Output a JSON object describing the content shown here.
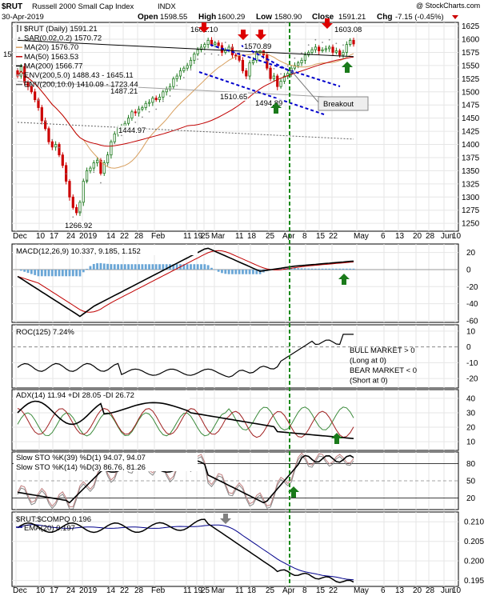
{
  "header": {
    "symbol": "$RUT",
    "name": "Russell 2000 Small Cap Index",
    "exchange": "INDX",
    "watermark": "@ StockCharts.com",
    "date": "30-Apr-2019",
    "open_label": "Open",
    "open": "1598.55",
    "high_label": "High",
    "high": "1600.29",
    "low_label": "Low",
    "low": "1580.90",
    "close_label": "Close",
    "close": "1591.21",
    "chg_label": "Chg",
    "chg": "-7.15 (-0.45%)"
  },
  "legend": [
    {
      "text": "$RUT (Daily) 1591.21",
      "color": "#000000",
      "swatch": "candle"
    },
    {
      "text": "SAR(0.02,0.2) 1570.72",
      "color": "#888888",
      "swatch": "dot"
    },
    {
      "text": "MA(20) 1576.70",
      "color": "#d8a060",
      "swatch": "line"
    },
    {
      "text": "MA(50) 1563.53",
      "color": "#c00000",
      "swatch": "line"
    },
    {
      "text": "MA(200) 1566.77",
      "color": "#000000",
      "swatch": "line"
    },
    {
      "text": "ENV(200,5.0) 1488.43 - 1645.11",
      "color": "#a0a0a0",
      "swatch": "line"
    },
    {
      "text": "ENV(200,10.0) 1410.09 - 1723.44",
      "color": "#606060",
      "swatch": "line"
    }
  ],
  "annotations": {
    "breakout": "Breakout",
    "price_labels": [
      "1602.10",
      "1570.89",
      "1603.08",
      "1487.21",
      "1510.65",
      "1494.89",
      "1444.97",
      "1266.92"
    ],
    "left_cut": "15"
  },
  "x_labels": [
    "Dec",
    "10",
    "17",
    "24",
    "2019",
    "14",
    "22",
    "28",
    "Feb",
    "11",
    "19",
    "25",
    "Mar",
    "11",
    "18",
    "25",
    "Apr",
    "8",
    "15",
    "22",
    "May",
    "6",
    "13",
    "20",
    "28",
    "Jun",
    "10"
  ],
  "colors": {
    "up": "#1e7a1e",
    "down": "#cc0000",
    "trend": "#0000cc",
    "arrow_red": "#dd0000",
    "arrow_green": "#1a7a1a",
    "arrow_gray": "#808080",
    "vline": "#1a8a1a"
  },
  "panels": {
    "macd": {
      "title": "MACD(12,26,9) 10.337, 9.185, 1.152",
      "yticks": [
        "20",
        "0",
        "-20",
        "-40",
        "-60"
      ]
    },
    "roc": {
      "title": "ROC(125) 7.24%",
      "yticks": [
        "10",
        "0",
        "-10",
        "-20"
      ],
      "notes": [
        "BULL MARKET > 0",
        "(Long at 0)",
        "BEAR MARKET < 0",
        "(Short at 0)"
      ]
    },
    "adx": {
      "title": "ADX(14) 11.94 +DI 28.05 -DI 26.72",
      "yticks": [
        "40",
        "30",
        "20",
        "10"
      ]
    },
    "sto": {
      "title1": "Slow STO %K(39) %D(1) 94.07, 94.07",
      "title2": "Slow STO %K(14) %D(3) 86.76, 81.26",
      "yticks": [
        "80",
        "50",
        "20"
      ]
    },
    "rel": {
      "title": "$RUT:$COMPQ 0.196",
      "ema": "EMA(20) 0.197",
      "yticks": [
        "0.210",
        "0.205",
        "0.200",
        "0.195"
      ]
    }
  },
  "chart_data": {
    "type": "candlestick",
    "title": "$RUT Russell 2000 Small Cap Index INDX",
    "y_ticks": [
      1250,
      1275,
      1300,
      1325,
      1350,
      1375,
      1400,
      1425,
      1450,
      1475,
      1500,
      1525,
      1550,
      1575,
      1600,
      1625
    ],
    "ylim": [
      1235,
      1632
    ],
    "closes": [
      1530,
      1548,
      1518,
      1510,
      1500,
      1485,
      1470,
      1445,
      1430,
      1405,
      1395,
      1400,
      1380,
      1360,
      1330,
      1300,
      1280,
      1270,
      1290,
      1330,
      1350,
      1355,
      1365,
      1370,
      1345,
      1365,
      1380,
      1405,
      1420,
      1430,
      1435,
      1440,
      1450,
      1462,
      1460,
      1467,
      1470,
      1478,
      1480,
      1488,
      1485,
      1490,
      1500,
      1505,
      1510,
      1525,
      1530,
      1540,
      1545,
      1550,
      1560,
      1572,
      1580,
      1585,
      1590,
      1598,
      1590,
      1593,
      1588,
      1575,
      1580,
      1585,
      1570,
      1568,
      1560,
      1540,
      1530,
      1555,
      1560,
      1575,
      1578,
      1570,
      1545,
      1525,
      1530,
      1510,
      1520,
      1530,
      1535,
      1545,
      1550,
      1555,
      1560,
      1570,
      1575,
      1580,
      1585,
      1578,
      1580,
      1582,
      1585,
      1575,
      1578,
      1570,
      1575,
      1590,
      1598,
      1591
    ],
    "ma200": {
      "x": [
        0,
        97
      ],
      "y": [
        1598,
        1567
      ]
    },
    "env5_lower": {
      "x": [
        0,
        97
      ],
      "y": [
        1520,
        1488
      ]
    },
    "env10_lower": {
      "x": [
        0,
        97
      ],
      "y": [
        1442,
        1410
      ]
    }
  }
}
